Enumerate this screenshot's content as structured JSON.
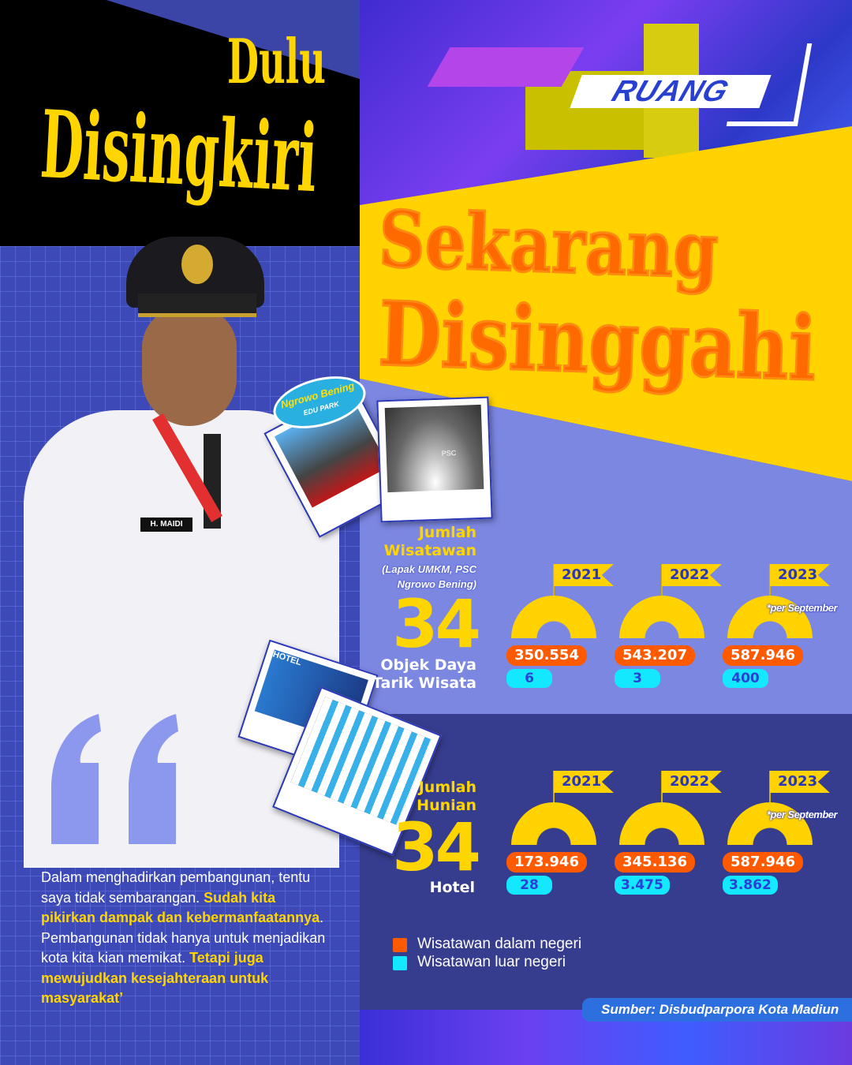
{
  "headline": {
    "top_small": "Dulu",
    "top_big": "Disingkiri",
    "bottom_line1": "Sekarang",
    "bottom_line2": "Disinggahi"
  },
  "brand": {
    "logo": "RUANG"
  },
  "person": {
    "name_tag": "H. MAIDI"
  },
  "photos": {
    "park_logo": "Ngrowo Bening",
    "park_sub": "EDU PARK",
    "gate_sign": "PSC",
    "hotel_sign": "HOTEL"
  },
  "tourists": {
    "title_line1": "Jumlah",
    "title_line2": "Wisatawan",
    "subtitle_line1": "(Lapak UMKM, PSC",
    "subtitle_line2": "Ngrowo Bening)",
    "count": "34",
    "count_label_line1": "Objek Daya",
    "count_label_line2": "Tarik Wisata",
    "years": [
      {
        "year": "2021",
        "domestic": "350.554",
        "foreign": "6",
        "note": ""
      },
      {
        "year": "2022",
        "domestic": "543.207",
        "foreign": "3",
        "note": ""
      },
      {
        "year": "2023",
        "domestic": "587.946",
        "foreign": "400",
        "note": "*per September"
      }
    ]
  },
  "hotels": {
    "title_line1": "Jumlah",
    "title_line2": "Hunian",
    "count": "34",
    "count_label": "Hotel",
    "years": [
      {
        "year": "2021",
        "domestic": "173.946",
        "foreign": "28",
        "note": ""
      },
      {
        "year": "2022",
        "domestic": "345.136",
        "foreign": "3.475",
        "note": ""
      },
      {
        "year": "2023",
        "domestic": "587.946",
        "foreign": "3.862",
        "note": "*per September"
      }
    ]
  },
  "legend": [
    {
      "label": "Wisatawan dalam negeri",
      "color": "#ff5a00"
    },
    {
      "label": "Wisatawan luar negeri",
      "color": "#14e8ff"
    }
  ],
  "quote": {
    "p1": "Dalam menghadirkan pembangunan, tentu saya tidak sembarangan. ",
    "h1": "Sudah kita pikirkan dampak dan kebermanfaatannya",
    "p2": ". Pembangunan tidak hanya untuk menjadikan kota kita kian memikat. ",
    "h2": "Tetapi juga mewujudkan kesejahteraan untuk masyarakat’"
  },
  "source": "Sumber: Disbudparpora Kota Madiun",
  "colors": {
    "yellow": "#ffd200",
    "orange": "#ff5a00",
    "cyan": "#14e8ff",
    "navy": "#373d8e",
    "periwinkle": "#7c87e2"
  }
}
